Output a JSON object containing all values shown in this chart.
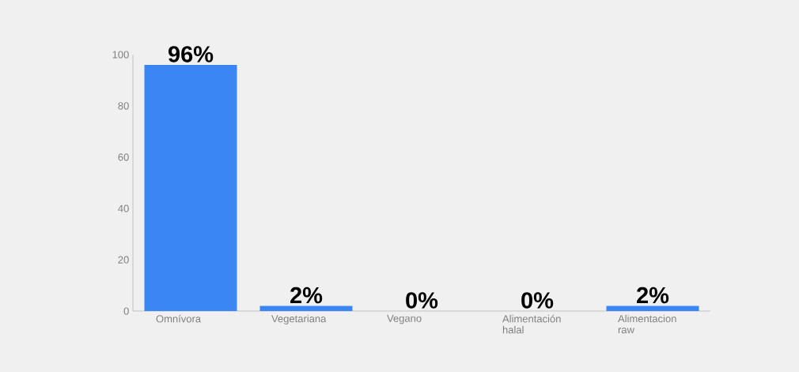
{
  "chart_data": {
    "type": "bar",
    "categories": [
      "Omnívora",
      "Vegetariana",
      "Vegano",
      "Alimentación halal",
      "Alimentacion raw"
    ],
    "values": [
      96,
      2,
      0,
      0,
      2
    ],
    "value_labels": [
      "96%",
      "2%",
      "0%",
      "0%",
      "2%"
    ],
    "color": "#3a86f5",
    "ylim": [
      0,
      100
    ],
    "yticks": [
      0,
      20,
      40,
      60,
      80,
      100
    ]
  }
}
